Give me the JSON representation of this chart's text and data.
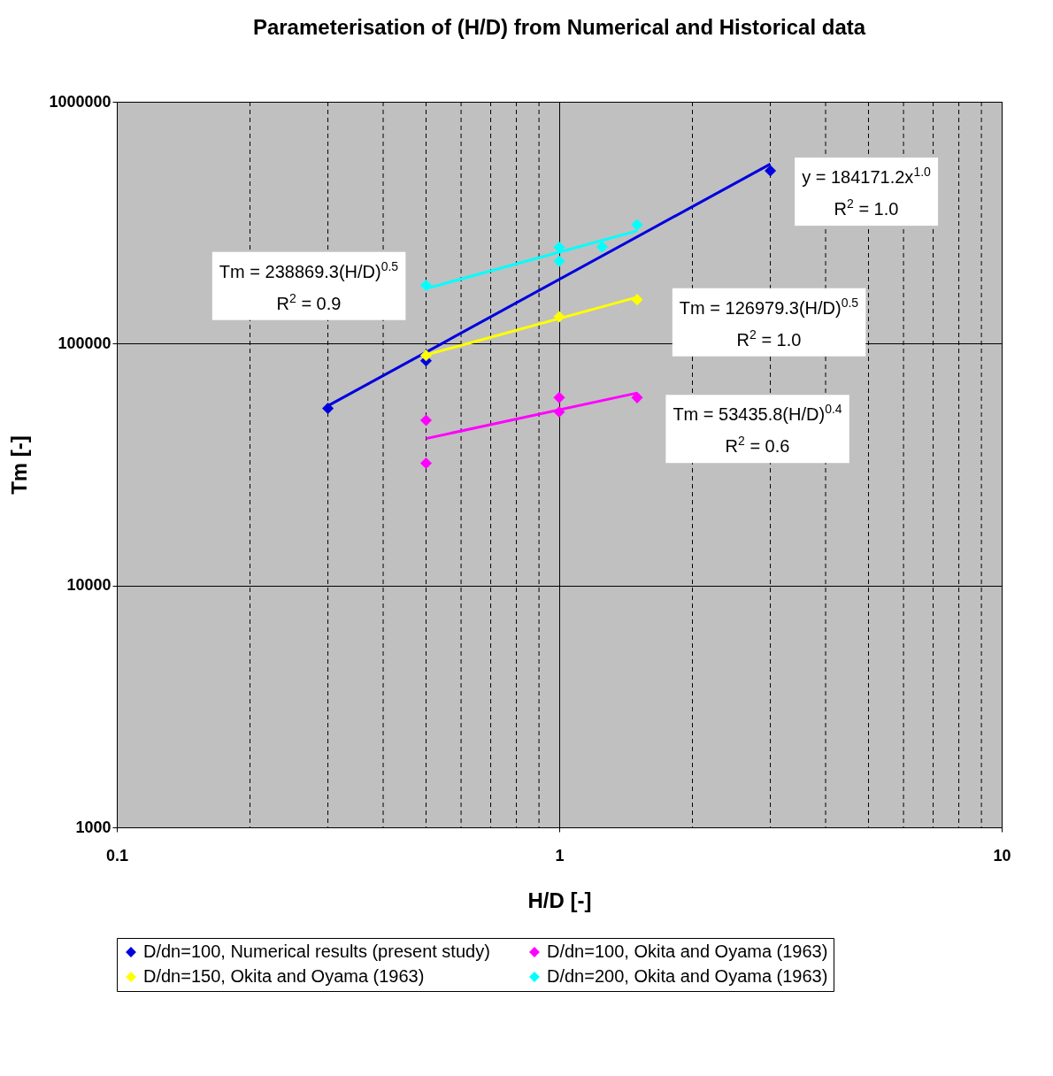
{
  "chart_data": {
    "type": "scatter",
    "title": "Parameterisation of (H/D) from Numerical and Historical data",
    "xlabel": "H/D [-]",
    "ylabel": "Tm [-]",
    "log": "xy",
    "xlim": [
      0.1,
      10
    ],
    "xticks": [
      0.1,
      1,
      10
    ],
    "ylim": [
      1000,
      1000000
    ],
    "yticks": [
      1000,
      10000,
      100000,
      1000000
    ],
    "grid": true,
    "legend": "bottom",
    "marker": "diamond",
    "series": [
      {
        "name": "D/dn=100, Numerical results (present study)",
        "color": "#0000dd",
        "x": [
          0.3,
          0.5,
          3
        ],
        "values": [
          54000,
          85000,
          518000
        ]
      },
      {
        "name": "D/dn=100, Okita and Oyama (1963)",
        "color": "#ff00ff",
        "x": [
          0.5,
          0.5,
          1,
          1,
          1.5
        ],
        "values": [
          48200,
          32000,
          59800,
          52200,
          59800
        ]
      },
      {
        "name": "D/dn=150, Okita and Oyama (1963)",
        "color": "#ffff00",
        "x": [
          0.5,
          1,
          1.5
        ],
        "values": [
          89300,
          129000,
          152000
        ]
      },
      {
        "name": "D/dn=200, Okita and Oyama (1963)",
        "color": "#00ffff",
        "x": [
          0.5,
          1,
          1,
          1.25,
          1.5
        ],
        "values": [
          174000,
          250000,
          219000,
          251000,
          310000
        ]
      },
      {
        "type": "line",
        "marker": "none",
        "line_style": "solid",
        "color": "#0000dd",
        "x": [
          0.3,
          3
        ],
        "values": [
          55300,
          553000
        ]
      },
      {
        "type": "line",
        "marker": "none",
        "line_style": "solid",
        "color": "#ff00ff",
        "x": [
          0.5,
          1.5
        ],
        "values": [
          40500,
          62500
        ]
      },
      {
        "type": "line",
        "marker": "none",
        "line_style": "solid",
        "color": "#ffff00",
        "x": [
          0.5,
          1.5
        ],
        "values": [
          89800,
          155500
        ]
      },
      {
        "type": "line",
        "marker": "none",
        "line_style": "solid",
        "color": "#00ffff",
        "x": [
          0.5,
          1.5
        ],
        "values": [
          168900,
          292500
        ]
      }
    ],
    "annotations": [
      "y = 184171.2x$^{1.0}$\nR$^{2}$ = 1.0",
      "Tm = 238869.3(H/D)$^{0.5}$\nR$^{2}$ = 0.9",
      "Tm = 126979.3(H/D)$^{0.5}$\nR$^{2}$ = 1.0",
      "Tm = 53435.8(H/D)$^{0.4}$\nR$^{2}$ = 0.6"
    ]
  }
}
